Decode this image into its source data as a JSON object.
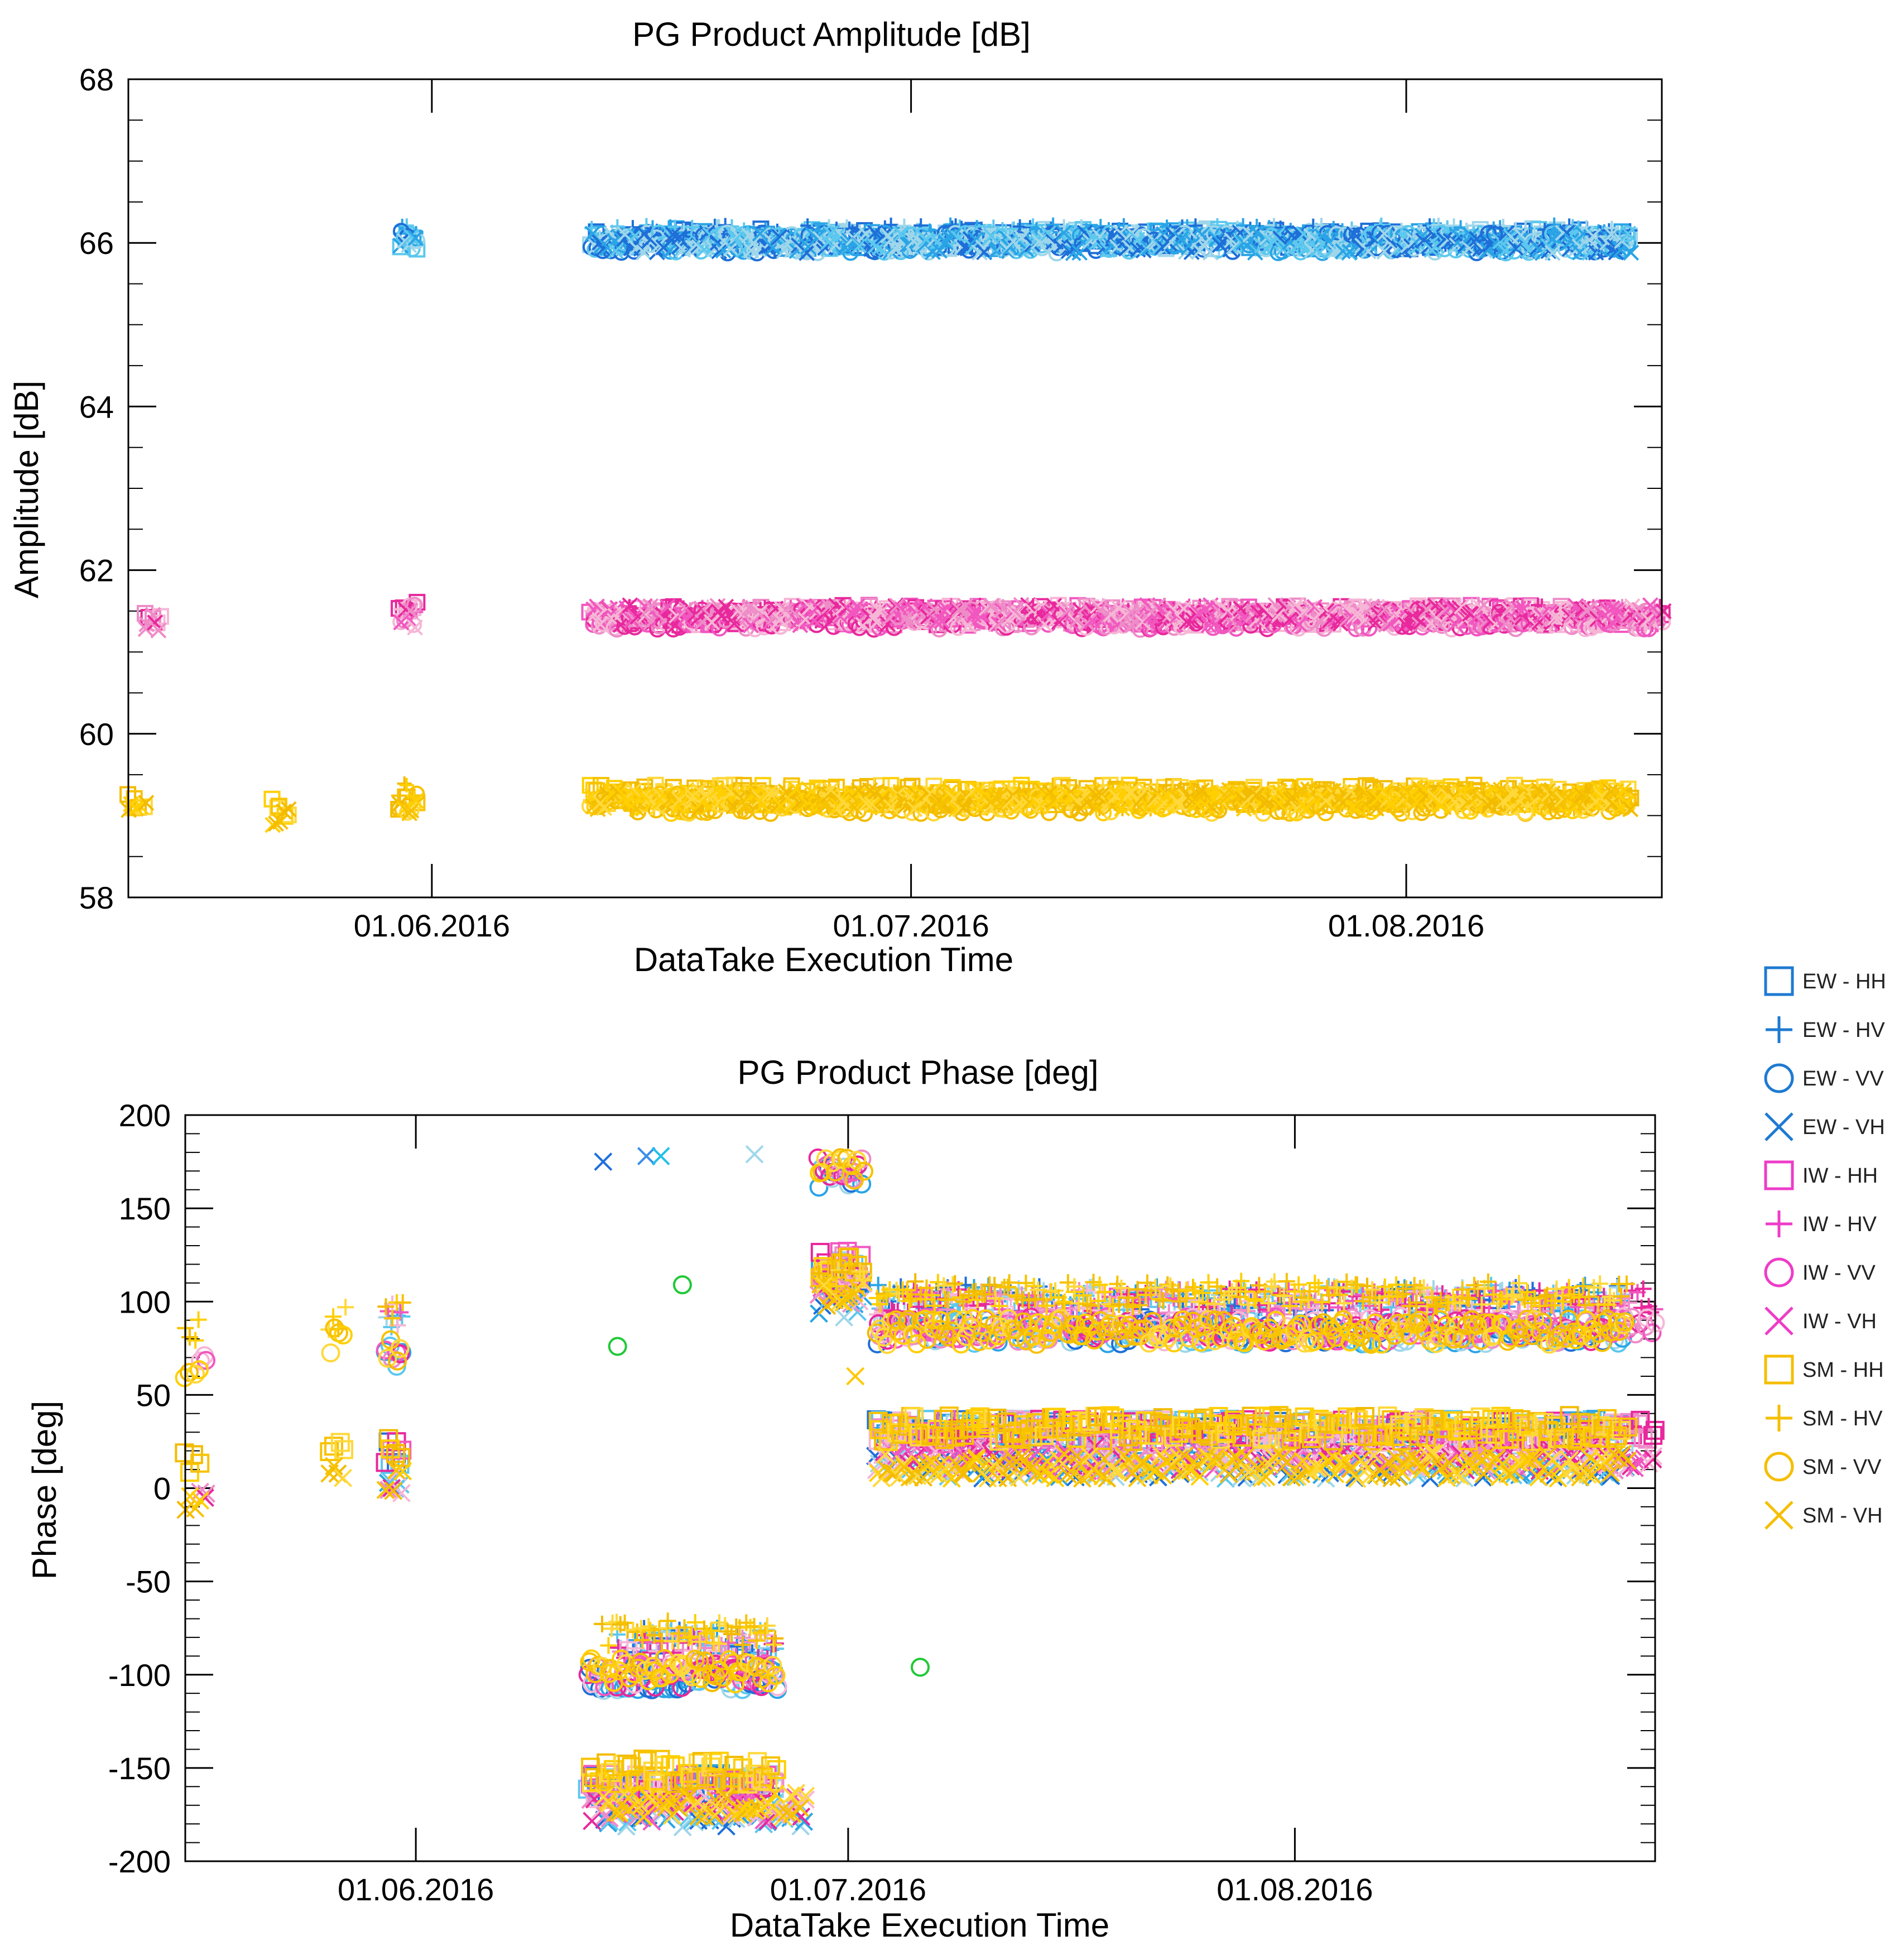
{
  "chart_data": [
    {
      "type": "scatter",
      "title": "PG Product Amplitude [dB]",
      "xlabel": "DataTake Execution Time",
      "ylabel": "Amplitude [dB]",
      "ylim": [
        58,
        68
      ],
      "yticks": [
        "68",
        "66",
        "64",
        "62",
        "60",
        "58"
      ],
      "xlim_days_from_2016_05_01": [
        12,
        108
      ],
      "xticks": [
        {
          "day": 31,
          "label": "01.06.2016"
        },
        {
          "day": 61,
          "label": "01.07.2016"
        },
        {
          "day": 92,
          "label": "01.08.2016"
        }
      ],
      "series": [
        {
          "name": "EW - HH",
          "ranges": [
            {
              "x": [
                29,
                30
              ],
              "y": 66.0
            },
            {
              "x": [
                41,
                106
              ],
              "y": 66.05
            }
          ]
        },
        {
          "name": "EW - HV",
          "ranges": [
            {
              "x": [
                29,
                30
              ],
              "y": 66.1
            },
            {
              "x": [
                41,
                106
              ],
              "y": 66.1
            }
          ]
        },
        {
          "name": "EW - VV",
          "ranges": [
            {
              "x": [
                29,
                30
              ],
              "y": 66.05
            },
            {
              "x": [
                41,
                106
              ],
              "y": 66.0
            }
          ]
        },
        {
          "name": "EW - VH",
          "ranges": [
            {
              "x": [
                29,
                30
              ],
              "y": 66.0
            },
            {
              "x": [
                41,
                106
              ],
              "y": 66.0
            }
          ]
        },
        {
          "name": "IW - HH",
          "ranges": [
            {
              "x": [
                13,
                14
              ],
              "y": 61.4
            },
            {
              "x": [
                29,
                30
              ],
              "y": 61.5
            },
            {
              "x": [
                41,
                108
              ],
              "y": 61.45
            }
          ]
        },
        {
          "name": "IW - HV",
          "ranges": [
            {
              "x": [
                29,
                30
              ],
              "y": 61.45
            },
            {
              "x": [
                41,
                108
              ],
              "y": 61.45
            }
          ]
        },
        {
          "name": "IW - VV",
          "ranges": [
            {
              "x": [
                29,
                30
              ],
              "y": 61.45
            },
            {
              "x": [
                41,
                108
              ],
              "y": 61.4
            }
          ]
        },
        {
          "name": "IW - VH",
          "ranges": [
            {
              "x": [
                13,
                14
              ],
              "y": 61.35
            },
            {
              "x": [
                29,
                30
              ],
              "y": 61.4
            },
            {
              "x": [
                41,
                108
              ],
              "y": 61.45
            }
          ]
        },
        {
          "name": "SM - HH",
          "ranges": [
            {
              "x": [
                12,
                13
              ],
              "y": 59.15
            },
            {
              "x": [
                21,
                22
              ],
              "y": 59.1
            },
            {
              "x": [
                29,
                30
              ],
              "y": 59.2
            },
            {
              "x": [
                41,
                106
              ],
              "y": 59.25
            }
          ]
        },
        {
          "name": "SM - HV",
          "ranges": [
            {
              "x": [
                29,
                30
              ],
              "y": 59.3
            },
            {
              "x": [
                41,
                106
              ],
              "y": 59.2
            }
          ]
        },
        {
          "name": "SM - VV",
          "ranges": [
            {
              "x": [
                29,
                30
              ],
              "y": 59.15
            },
            {
              "x": [
                41,
                106
              ],
              "y": 59.15
            }
          ]
        },
        {
          "name": "SM - VH",
          "ranges": [
            {
              "x": [
                12,
                13
              ],
              "y": 59.1
            },
            {
              "x": [
                21,
                22
              ],
              "y": 59.0
            },
            {
              "x": [
                29,
                30
              ],
              "y": 59.1
            },
            {
              "x": [
                41,
                106
              ],
              "y": 59.2
            }
          ]
        }
      ]
    },
    {
      "type": "scatter",
      "title": "PG Product Phase [deg]",
      "xlabel": "DataTake Execution Time",
      "ylabel": "Phase [deg]",
      "ylim": [
        -200,
        200
      ],
      "yticks": [
        "200",
        "150",
        "100",
        "50",
        "0",
        "-50",
        "-100",
        "-150",
        "-200"
      ],
      "xlim_days_from_2016_05_01": [
        15,
        117
      ],
      "xticks": [
        {
          "day": 31,
          "label": "01.06.2016"
        },
        {
          "day": 61,
          "label": "01.07.2016"
        },
        {
          "day": 92,
          "label": "01.08.2016"
        }
      ],
      "series": [
        {
          "name": "EW - HH",
          "ranges": [
            {
              "x": [
                29,
                30
              ],
              "y": 18
            },
            {
              "x": [
                43,
                56
              ],
              "y": -160
            },
            {
              "x": [
                59,
                62
              ],
              "y": 115
            },
            {
              "x": [
                63,
                115
              ],
              "y": 30
            }
          ]
        },
        {
          "name": "EW - HV",
          "ranges": [
            {
              "x": [
                29,
                30
              ],
              "y": 90
            },
            {
              "x": [
                45,
                56
              ],
              "y": -82
            },
            {
              "x": [
                59,
                62
              ],
              "y": 108
            },
            {
              "x": [
                63,
                115
              ],
              "y": 102
            }
          ]
        },
        {
          "name": "EW - VV",
          "ranges": [
            {
              "x": [
                29,
                30
              ],
              "y": 72
            },
            {
              "x": [
                43,
                56
              ],
              "y": -102
            },
            {
              "x": [
                59,
                62
              ],
              "y": 168
            },
            {
              "x": [
                63,
                115
              ],
              "y": 84
            }
          ]
        },
        {
          "name": "EW - VH",
          "ranges": [
            {
              "x": [
                29,
                30
              ],
              "y": 2
            },
            {
              "x": [
                44,
                58
              ],
              "y": -175
            },
            {
              "x": [
                59,
                62
              ],
              "y": 98
            },
            {
              "x": [
                63,
                115
              ],
              "y": 12
            }
          ]
        },
        {
          "name": "IW - HH",
          "ranges": [
            {
              "x": [
                29,
                30
              ],
              "y": 20
            },
            {
              "x": [
                43,
                56
              ],
              "y": -160
            },
            {
              "x": [
                59,
                62
              ],
              "y": 120
            },
            {
              "x": [
                63,
                117
              ],
              "y": 30
            }
          ]
        },
        {
          "name": "IW - HV",
          "ranges": [
            {
              "x": [
                29,
                30
              ],
              "y": 92
            },
            {
              "x": [
                45,
                56
              ],
              "y": -85
            },
            {
              "x": [
                59,
                62
              ],
              "y": 112
            },
            {
              "x": [
                63,
                117
              ],
              "y": 100
            }
          ]
        },
        {
          "name": "IW - VV",
          "ranges": [
            {
              "x": [
                16,
                16.5
              ],
              "y": 66
            },
            {
              "x": [
                29,
                30
              ],
              "y": 75
            },
            {
              "x": [
                43,
                56
              ],
              "y": -100
            },
            {
              "x": [
                59,
                62
              ],
              "y": 172
            },
            {
              "x": [
                63,
                117
              ],
              "y": 85
            }
          ]
        },
        {
          "name": "IW - VH",
          "ranges": [
            {
              "x": [
                16,
                16.5
              ],
              "y": -6
            },
            {
              "x": [
                29,
                30
              ],
              "y": 4
            },
            {
              "x": [
                43,
                58
              ],
              "y": -172
            },
            {
              "x": [
                59,
                62
              ],
              "y": 105
            },
            {
              "x": [
                63,
                117
              ],
              "y": 16
            }
          ]
        },
        {
          "name": "SM - HH",
          "ranges": [
            {
              "x": [
                15,
                16
              ],
              "y": 12
            },
            {
              "x": [
                25,
                26
              ],
              "y": 20
            },
            {
              "x": [
                29,
                30
              ],
              "y": 22
            },
            {
              "x": [
                43,
                56
              ],
              "y": -152
            },
            {
              "x": [
                59,
                62
              ],
              "y": 118
            },
            {
              "x": [
                63,
                115
              ],
              "y": 32
            }
          ]
        },
        {
          "name": "SM - HV",
          "ranges": [
            {
              "x": [
                15,
                16
              ],
              "y": 85
            },
            {
              "x": [
                25,
                26
              ],
              "y": 92
            },
            {
              "x": [
                29,
                30
              ],
              "y": 93
            },
            {
              "x": [
                44,
                56
              ],
              "y": -78
            },
            {
              "x": [
                59,
                62
              ],
              "y": 110
            },
            {
              "x": [
                63,
                115
              ],
              "y": 104
            }
          ]
        },
        {
          "name": "SM - VV",
          "ranges": [
            {
              "x": [
                15,
                16
              ],
              "y": 65
            },
            {
              "x": [
                25,
                26
              ],
              "y": 79
            },
            {
              "x": [
                29,
                30
              ],
              "y": 74
            },
            {
              "x": [
                43,
                56
              ],
              "y": -98
            },
            {
              "x": [
                59,
                62
              ],
              "y": 172
            },
            {
              "x": [
                63,
                115
              ],
              "y": 84
            }
          ]
        },
        {
          "name": "SM - VH",
          "ranges": [
            {
              "x": [
                15,
                16
              ],
              "y": -7
            },
            {
              "x": [
                25,
                26
              ],
              "y": 5
            },
            {
              "x": [
                29,
                30
              ],
              "y": 3
            },
            {
              "x": [
                44,
                58
              ],
              "y": -170
            },
            {
              "x": [
                59,
                62
              ],
              "y": 104
            },
            {
              "x": [
                63,
                115
              ],
              "y": 12
            }
          ]
        }
      ],
      "extra_points": [
        {
          "series": "EW - VH",
          "x": 44,
          "y": 175,
          "color": "#1e6fe0"
        },
        {
          "series": "EW - VH",
          "x": 47,
          "y": 178,
          "color": "#3a8fe8"
        },
        {
          "series": "EW - VH",
          "x": 48,
          "y": 178,
          "color": "#22c0e8"
        },
        {
          "series": "EW - VH",
          "x": 54.5,
          "y": 179,
          "color": "#9fd8ec"
        },
        {
          "series": "SM - VH",
          "x": 61.5,
          "y": 60,
          "color": "#ffc800"
        },
        {
          "series": "EW - VV",
          "x": 45,
          "y": 76,
          "color": "#22c838"
        },
        {
          "series": "EW - VV",
          "x": 49.5,
          "y": 109,
          "color": "#22c838"
        },
        {
          "series": "EW - VV",
          "x": 66,
          "y": -96,
          "color": "#22c838"
        }
      ]
    }
  ],
  "legend": [
    {
      "label": "EW - HH",
      "marker": "square",
      "color": "#1e7ad2"
    },
    {
      "label": "EW - HV",
      "marker": "plus",
      "color": "#1e7ad2"
    },
    {
      "label": "EW - VV",
      "marker": "circle",
      "color": "#1e7ad2"
    },
    {
      "label": "EW - VH",
      "marker": "cross",
      "color": "#1e7ad2"
    },
    {
      "label": "IW - HH",
      "marker": "square",
      "color": "#ee3cc8"
    },
    {
      "label": "IW - HV",
      "marker": "plus",
      "color": "#ee3cc8"
    },
    {
      "label": "IW - VV",
      "marker": "circle",
      "color": "#ee3cc8"
    },
    {
      "label": "IW - VH",
      "marker": "cross",
      "color": "#ee3cc8"
    },
    {
      "label": "SM - HH",
      "marker": "square",
      "color": "#f5be00"
    },
    {
      "label": "SM - HV",
      "marker": "plus",
      "color": "#f5be00"
    },
    {
      "label": "SM - VV",
      "marker": "circle",
      "color": "#f5be00"
    },
    {
      "label": "SM - VH",
      "marker": "cross",
      "color": "#f5be00"
    }
  ],
  "series_colors": {
    "EW": [
      "#1e6fd8",
      "#2aa4e6",
      "#5cc8ee",
      "#9fd6ea"
    ],
    "IW": [
      "#e8289c",
      "#f257c0",
      "#ee8cc8",
      "#f6b6d6"
    ],
    "SM": [
      "#ffcf00",
      "#f7c200",
      "#ffd83a",
      "#f2bb00"
    ]
  }
}
